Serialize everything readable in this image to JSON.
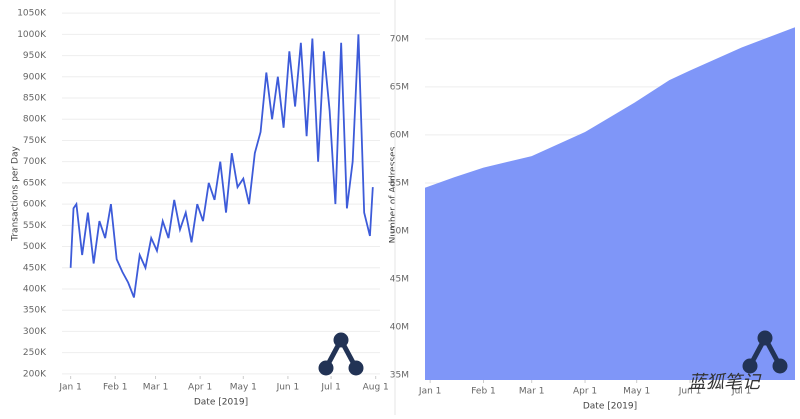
{
  "chart_data": [
    {
      "type": "line",
      "x_label": "Date [2019]",
      "y_label": "Transactions per Day",
      "color": "#3d5bd9",
      "grid": true,
      "xlim": [
        "2018-12-26",
        "2019-08-04"
      ],
      "ylim": [
        195000,
        1055000
      ],
      "xticks": [
        {
          "value": "2019-01-01",
          "label": "Jan 1"
        },
        {
          "value": "2019-02-01",
          "label": "Feb 1"
        },
        {
          "value": "2019-03-01",
          "label": "Mar 1"
        },
        {
          "value": "2019-04-01",
          "label": "Apr 1"
        },
        {
          "value": "2019-05-01",
          "label": "May 1"
        },
        {
          "value": "2019-06-01",
          "label": "Jun 1"
        },
        {
          "value": "2019-07-01",
          "label": "Jul 1"
        },
        {
          "value": "2019-08-01",
          "label": "Aug 1"
        }
      ],
      "yticks": [
        {
          "value": 200000,
          "label": "200K"
        },
        {
          "value": 250000,
          "label": "250K"
        },
        {
          "value": 300000,
          "label": "300K"
        },
        {
          "value": 350000,
          "label": "350K"
        },
        {
          "value": 400000,
          "label": "400K"
        },
        {
          "value": 450000,
          "label": "450K"
        },
        {
          "value": 500000,
          "label": "500K"
        },
        {
          "value": 550000,
          "label": "550K"
        },
        {
          "value": 600000,
          "label": "600K"
        },
        {
          "value": 650000,
          "label": "650K"
        },
        {
          "value": 700000,
          "label": "700K"
        },
        {
          "value": 750000,
          "label": "750K"
        },
        {
          "value": 800000,
          "label": "800K"
        },
        {
          "value": 850000,
          "label": "850K"
        },
        {
          "value": 900000,
          "label": "900K"
        },
        {
          "value": 950000,
          "label": "950K"
        },
        {
          "value": 1000000,
          "label": "1000K"
        },
        {
          "value": 1050000,
          "label": "1050K"
        }
      ],
      "x": [
        "2019-01-01",
        "2019-01-03",
        "2019-01-05",
        "2019-01-09",
        "2019-01-13",
        "2019-01-17",
        "2019-01-21",
        "2019-01-25",
        "2019-01-29",
        "2019-02-02",
        "2019-02-06",
        "2019-02-10",
        "2019-02-14",
        "2019-02-18",
        "2019-02-22",
        "2019-02-26",
        "2019-03-02",
        "2019-03-06",
        "2019-03-10",
        "2019-03-14",
        "2019-03-18",
        "2019-03-22",
        "2019-03-26",
        "2019-03-30",
        "2019-04-03",
        "2019-04-07",
        "2019-04-11",
        "2019-04-15",
        "2019-04-19",
        "2019-04-23",
        "2019-04-27",
        "2019-05-01",
        "2019-05-05",
        "2019-05-09",
        "2019-05-13",
        "2019-05-17",
        "2019-05-21",
        "2019-05-25",
        "2019-05-29",
        "2019-06-02",
        "2019-06-06",
        "2019-06-10",
        "2019-06-14",
        "2019-06-18",
        "2019-06-22",
        "2019-06-26",
        "2019-06-30",
        "2019-07-04",
        "2019-07-08",
        "2019-07-12",
        "2019-07-16",
        "2019-07-20",
        "2019-07-24",
        "2019-07-28",
        "2019-07-30"
      ],
      "values": [
        450000,
        590000,
        600000,
        480000,
        580000,
        460000,
        560000,
        520000,
        600000,
        470000,
        440000,
        415000,
        380000,
        480000,
        450000,
        520000,
        490000,
        560000,
        520000,
        610000,
        540000,
        580000,
        510000,
        600000,
        560000,
        650000,
        610000,
        700000,
        580000,
        720000,
        640000,
        660000,
        600000,
        720000,
        770000,
        910000,
        800000,
        900000,
        780000,
        960000,
        830000,
        980000,
        760000,
        990000,
        700000,
        960000,
        820000,
        600000,
        980000,
        590000,
        700000,
        1000000,
        580000,
        525000,
        640000
      ]
    },
    {
      "type": "area",
      "x_label": "Date [2019]",
      "y_label": "Number of Addresses",
      "color": "#7f96f8",
      "grid": true,
      "xlim": [
        "2018-12-29",
        "2019-08-01"
      ],
      "ylim": [
        34500000,
        73000000
      ],
      "xticks": [
        {
          "value": "2019-01-01",
          "label": "Jan 1"
        },
        {
          "value": "2019-02-01",
          "label": "Feb 1"
        },
        {
          "value": "2019-03-01",
          "label": "Mar 1"
        },
        {
          "value": "2019-04-01",
          "label": "Apr 1"
        },
        {
          "value": "2019-05-01",
          "label": "May 1"
        },
        {
          "value": "2019-06-01",
          "label": "Jun 1"
        },
        {
          "value": "2019-07-01",
          "label": "Jul 1"
        }
      ],
      "yticks": [
        {
          "value": 35000000,
          "label": "35M"
        },
        {
          "value": 40000000,
          "label": "40M"
        },
        {
          "value": 45000000,
          "label": "45M"
        },
        {
          "value": 50000000,
          "label": "50M"
        },
        {
          "value": 55000000,
          "label": "55M"
        },
        {
          "value": 60000000,
          "label": "60M"
        },
        {
          "value": 65000000,
          "label": "65M"
        },
        {
          "value": 70000000,
          "label": "70M"
        }
      ],
      "x": [
        "2018-12-29",
        "2019-01-15",
        "2019-02-01",
        "2019-03-01",
        "2019-04-01",
        "2019-05-01",
        "2019-05-20",
        "2019-06-01",
        "2019-07-01",
        "2019-08-01"
      ],
      "values": [
        54500000,
        55600000,
        56600000,
        57800000,
        60300000,
        63500000,
        65700000,
        66700000,
        69100000,
        71200000
      ]
    }
  ],
  "watermark": "蓝狐笔记"
}
